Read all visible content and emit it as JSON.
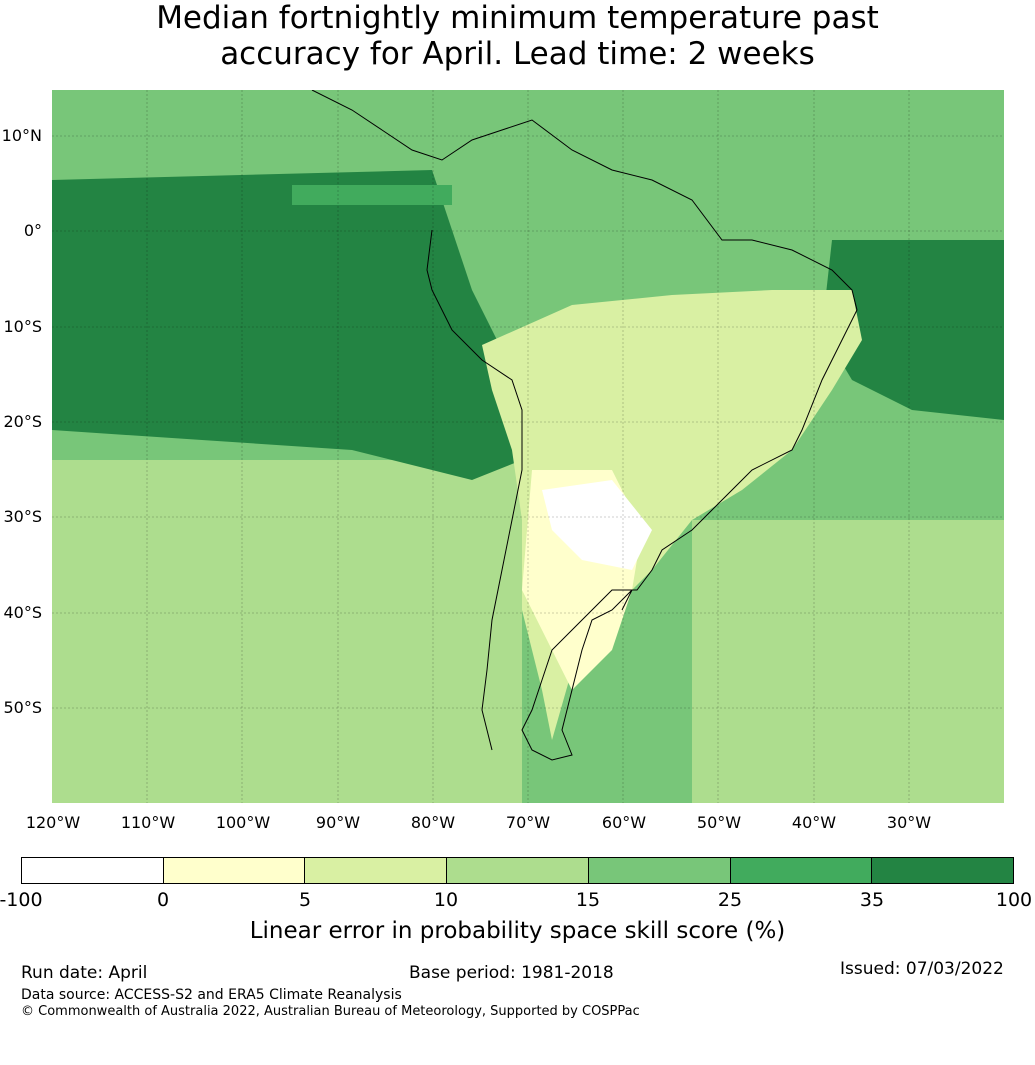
{
  "title": {
    "line1": "Median fortnightly minimum temperature past",
    "line2": "accuracy for April. Lead time: 2 weeks"
  },
  "map": {
    "lat_labels": [
      "10°N",
      "0°",
      "10°S",
      "20°S",
      "30°S",
      "40°S",
      "50°S"
    ],
    "lon_labels": [
      "120°W",
      "110°W",
      "100°W",
      "90°W",
      "80°W",
      "70°W",
      "60°W",
      "50°W",
      "40°W",
      "30°W"
    ],
    "extent": {
      "lon_min": -120,
      "lon_max": -20,
      "lat_min": -60,
      "lat_max": 15
    }
  },
  "colorbar": {
    "ticks": [
      "-100",
      "0",
      "5",
      "10",
      "15",
      "25",
      "35",
      "100"
    ],
    "colors": [
      "#ffffff",
      "#ffffcc",
      "#d9f0a3",
      "#addd8e",
      "#78c679",
      "#41ab5d",
      "#238443"
    ],
    "label": "Linear error in probability space skill score (%)"
  },
  "footer": {
    "run_date": "Run date: April",
    "base_period": "Base period: 1981-2018",
    "issued": "Issued: 07/03/2022",
    "data_source": "Data source: ACCESS-S2 and ERA5 Climate Reanalysis",
    "copyright": "© Commonwealth of Australia 2022, Australian Bureau of Meteorology, Supported by COSPPac"
  }
}
